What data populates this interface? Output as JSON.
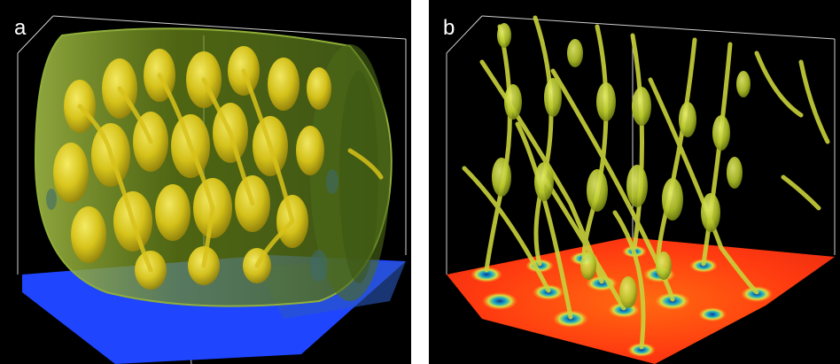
{
  "panels": [
    {
      "label": "a"
    },
    {
      "label": "b"
    }
  ],
  "colors": {
    "background": "#000000",
    "structure_yellow": "#e6d21a",
    "cylinder_green": "#6f8f1a",
    "floor_blue": "#1f45ff",
    "floor_hot": "#ff3a10",
    "floor_warm": "#ffb020",
    "vortex_core": "#18a8c8"
  }
}
